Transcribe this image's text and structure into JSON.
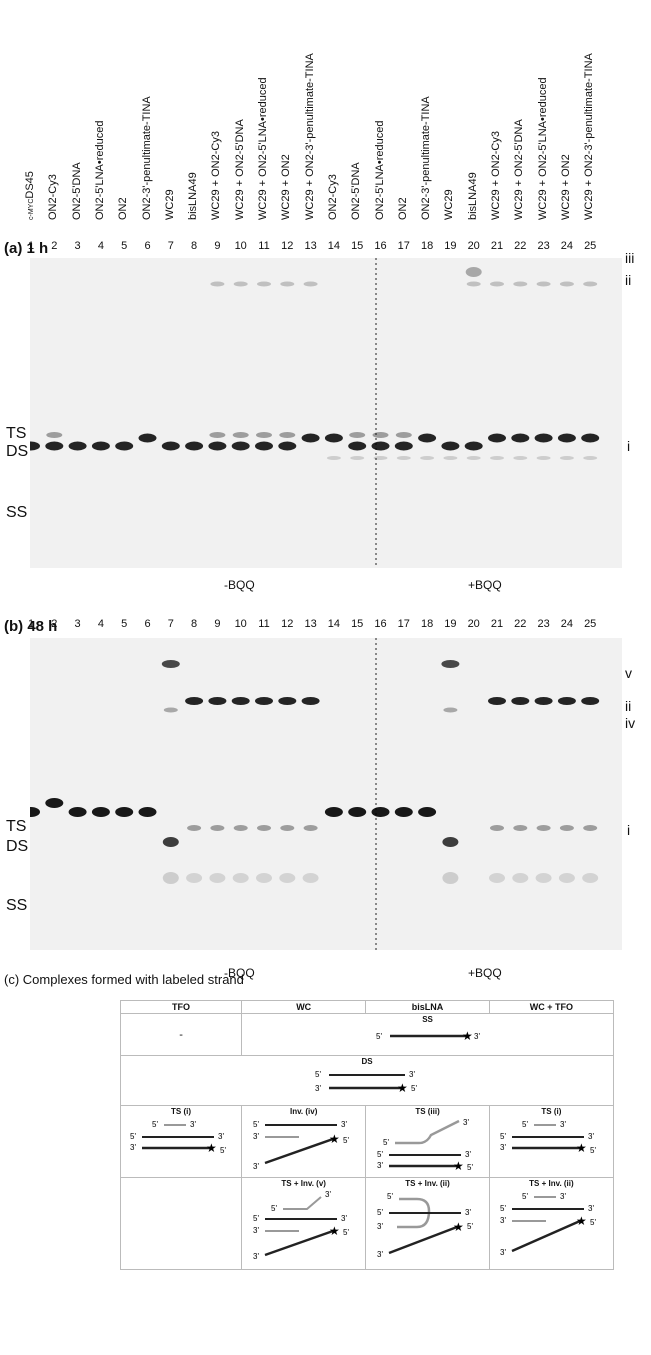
{
  "lanes_header": [
    "c-MYCDS45",
    "ON2-Cy3",
    "ON2-5'DNA",
    "ON2-5'LNA•reduced",
    "ON2",
    "ON2-3'-penultimate-TINA",
    "WC29",
    "bisLNA49",
    "WC29 + ON2-Cy3",
    "WC29 + ON2-5'DNA",
    "WC29 + ON2-5'LNA•reduced",
    "WC29 + ON2",
    "WC29 + ON2-3'-penultimate-TINA",
    "ON2-Cy3",
    "ON2-5'DNA",
    "ON2-5'LNA•reduced",
    "ON2",
    "ON2-3'-penultimate-TINA",
    "WC29",
    "bisLNA49",
    "WC29 + ON2-Cy3",
    "WC29 + ON2-5'DNA",
    "WC29 + ON2-5'LNA•reduced",
    "WC29 + ON2",
    "WC29 + ON2-3'-penultimate-TINA"
  ],
  "lane_numbers": [
    "1",
    "2",
    "3",
    "4",
    "5",
    "6",
    "7",
    "8",
    "9",
    "10",
    "11",
    "12",
    "13",
    "14",
    "15",
    "16",
    "17",
    "18",
    "19",
    "20",
    "21",
    "22",
    "23",
    "24",
    "25"
  ],
  "panel_a": {
    "label": "(a)  1 h",
    "left_labels": {
      "ts": "TS",
      "ds": "DS",
      "ss": "SS"
    },
    "right_labels": {
      "iii": "iii",
      "ii": "ii",
      "i": "i"
    },
    "cond_minus": "-BQQ",
    "cond_plus": "+BQQ"
  },
  "panel_b": {
    "label": "(b)  48 h",
    "left_labels": {
      "ts": "TS",
      "ds": "DS",
      "ss": "SS"
    },
    "right_labels": {
      "v": "v",
      "ii": "ii",
      "iv": "iv",
      "i": "i"
    },
    "cond_minus": "-BQQ",
    "cond_plus": "+BQQ"
  },
  "panel_c": {
    "title": "(c)  Complexes formed with labeled strand",
    "columns": [
      "TFO",
      "WC",
      "bisLNA",
      "WC + TFO"
    ],
    "dash": "-",
    "ss": "SS",
    "ds": "DS",
    "ts_i": "TS (i)",
    "inv_iv": "Inv. (iv)",
    "ts_iii": "TS (iii)",
    "ts_inv_v": "TS + Inv. (v)",
    "ts_inv_ii": "TS + Inv. (ii)",
    "p5": "5'",
    "p3": "3'"
  }
}
